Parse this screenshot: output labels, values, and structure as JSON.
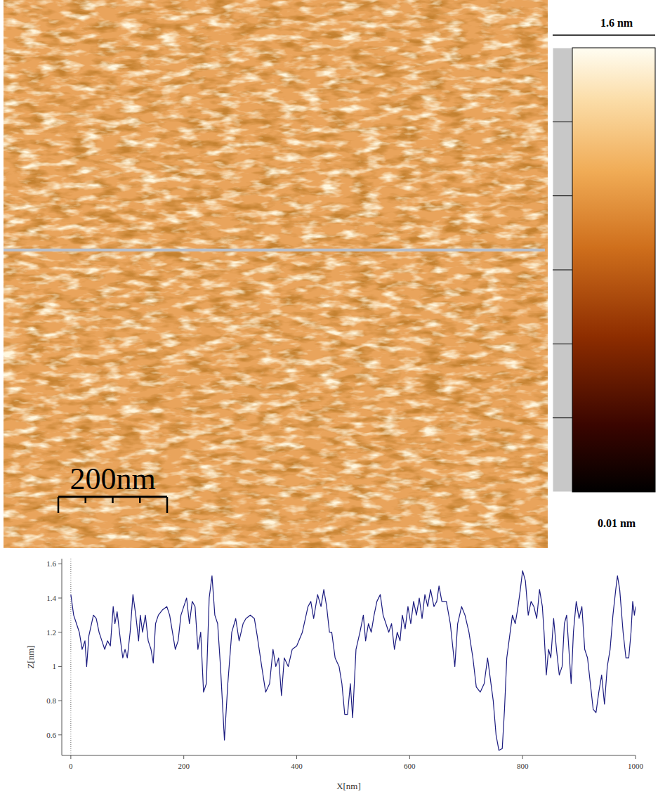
{
  "chart_data": [
    {
      "type": "heatmap",
      "xlim": [
        0,
        1000
      ],
      "ylim": [
        0,
        1000
      ],
      "tick_labels": false,
      "profile_y": 544,
      "scale_bar": {
        "value": 200,
        "label": "200nm"
      },
      "colorbar": {
        "range": [
          0.01,
          1.6
        ],
        "ticks": [
          {
            "value": 1.6,
            "label": "1.6 nm"
          },
          {
            "value": 0.01,
            "label": "0.01 nm"
          }
        ]
      }
    },
    {
      "type": "line",
      "x_label": "X[nm]",
      "y_label": "Z[nm]",
      "xlim": [
        -16,
        1000
      ],
      "ylim": [
        0.48,
        1.63
      ],
      "xticks": [
        0,
        200,
        400,
        600,
        800,
        1000
      ],
      "yticks": [
        0.6,
        0.8,
        1,
        1.2,
        1.4,
        1.6
      ],
      "color": "#1c1c80",
      "x": [
        0,
        5,
        10,
        15,
        20,
        25,
        28,
        32,
        40,
        45,
        50,
        55,
        60,
        65,
        70,
        75,
        78,
        82,
        88,
        92,
        96,
        100,
        105,
        110,
        115,
        120,
        123,
        127,
        132,
        137,
        142,
        146,
        150,
        155,
        162,
        170,
        175,
        180,
        185,
        190,
        195,
        200,
        205,
        210,
        215,
        220,
        225,
        230,
        235,
        240,
        245,
        250,
        255,
        260,
        265,
        272,
        278,
        285,
        292,
        298,
        305,
        310,
        318,
        325,
        330,
        338,
        345,
        352,
        358,
        363,
        368,
        373,
        378,
        385,
        392,
        400,
        410,
        420,
        425,
        430,
        437,
        443,
        448,
        453,
        458,
        462,
        468,
        475,
        480,
        485,
        490,
        495,
        499,
        505,
        512,
        518,
        522,
        527,
        532,
        537,
        542,
        548,
        553,
        558,
        563,
        568,
        573,
        578,
        583,
        587,
        592,
        597,
        602,
        607,
        612,
        617,
        622,
        627,
        632,
        637,
        643,
        648,
        652,
        657,
        665,
        672,
        680,
        685,
        692,
        698,
        705,
        712,
        718,
        725,
        732,
        738,
        742,
        748,
        753,
        758,
        764,
        768,
        772,
        778,
        782,
        787,
        792,
        796,
        800,
        805,
        810,
        815,
        820,
        825,
        830,
        835,
        838,
        842,
        846,
        850,
        855,
        860,
        865,
        870,
        874,
        878,
        882,
        886,
        890,
        895,
        900,
        905,
        910,
        915,
        920,
        925,
        930,
        935,
        940,
        945,
        950,
        955,
        960,
        965,
        968,
        972,
        978,
        983,
        988,
        992,
        995,
        998,
        1000
      ],
      "values": [
        1.42,
        1.3,
        1.25,
        1.2,
        1.1,
        1.15,
        1.0,
        1.18,
        1.3,
        1.28,
        1.2,
        1.15,
        1.1,
        1.15,
        1.12,
        1.35,
        1.25,
        1.32,
        1.15,
        1.05,
        1.1,
        1.05,
        1.2,
        1.42,
        1.3,
        1.15,
        1.3,
        1.2,
        1.3,
        1.15,
        1.1,
        1.02,
        1.25,
        1.3,
        1.33,
        1.35,
        1.3,
        1.2,
        1.1,
        1.15,
        1.3,
        1.35,
        1.4,
        1.25,
        1.38,
        1.35,
        1.1,
        1.2,
        0.85,
        0.9,
        1.4,
        1.53,
        1.3,
        1.25,
        1.0,
        0.57,
        0.9,
        1.2,
        1.28,
        1.15,
        1.25,
        1.28,
        1.3,
        1.28,
        1.18,
        1.0,
        0.85,
        0.9,
        1.1,
        1.0,
        1.05,
        0.83,
        1.05,
        1.0,
        1.1,
        1.12,
        1.2,
        1.35,
        1.38,
        1.28,
        1.42,
        1.35,
        1.45,
        1.35,
        1.2,
        1.2,
        1.05,
        1.0,
        0.9,
        0.72,
        0.72,
        0.9,
        0.7,
        1.1,
        1.2,
        1.3,
        1.15,
        1.25,
        1.2,
        1.3,
        1.38,
        1.42,
        1.3,
        1.25,
        1.2,
        1.25,
        1.1,
        1.2,
        1.15,
        1.3,
        1.22,
        1.35,
        1.25,
        1.38,
        1.3,
        1.4,
        1.28,
        1.42,
        1.35,
        1.45,
        1.35,
        1.38,
        1.47,
        1.38,
        1.38,
        1.25,
        1.0,
        1.25,
        1.35,
        1.3,
        1.2,
        1.05,
        0.88,
        0.85,
        0.9,
        1.05,
        0.95,
        0.8,
        0.6,
        0.51,
        0.52,
        0.75,
        1.05,
        1.2,
        1.3,
        1.25,
        1.35,
        1.45,
        1.56,
        1.5,
        1.3,
        1.38,
        1.35,
        1.28,
        1.45,
        1.35,
        1.2,
        0.95,
        1.1,
        1.05,
        1.28,
        1.1,
        0.95,
        1.0,
        1.25,
        1.3,
        1.1,
        0.9,
        1.2,
        1.38,
        1.28,
        1.35,
        1.1,
        1.05,
        0.9,
        0.75,
        0.73,
        0.85,
        0.95,
        0.78,
        1.0,
        1.1,
        1.3,
        1.45,
        1.53,
        1.45,
        1.2,
        1.05,
        1.05,
        1.2,
        1.38,
        1.3,
        1.35
      ]
    }
  ]
}
